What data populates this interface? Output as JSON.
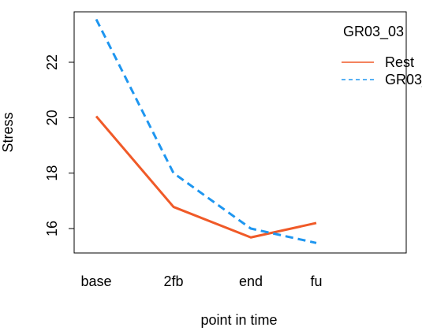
{
  "chart_data": {
    "type": "line",
    "title": "",
    "xlabel": "point in time",
    "ylabel": "Stress",
    "categories": [
      "base",
      "2fb",
      "end",
      "fu"
    ],
    "yticks": [
      16,
      18,
      20,
      22
    ],
    "ylim": [
      15.2,
      23.7
    ],
    "grid": false,
    "legend": {
      "title": "GR03_03",
      "placement": "top-right"
    },
    "series": [
      {
        "name": "Rest",
        "values": [
          20.05,
          16.78,
          15.68,
          16.2
        ],
        "color": "#F05A28",
        "style": "solid"
      },
      {
        "name": "GR03_03",
        "values": [
          23.55,
          18.0,
          16.0,
          15.48
        ],
        "color": "#1E96F0",
        "style": "dashed"
      }
    ]
  }
}
